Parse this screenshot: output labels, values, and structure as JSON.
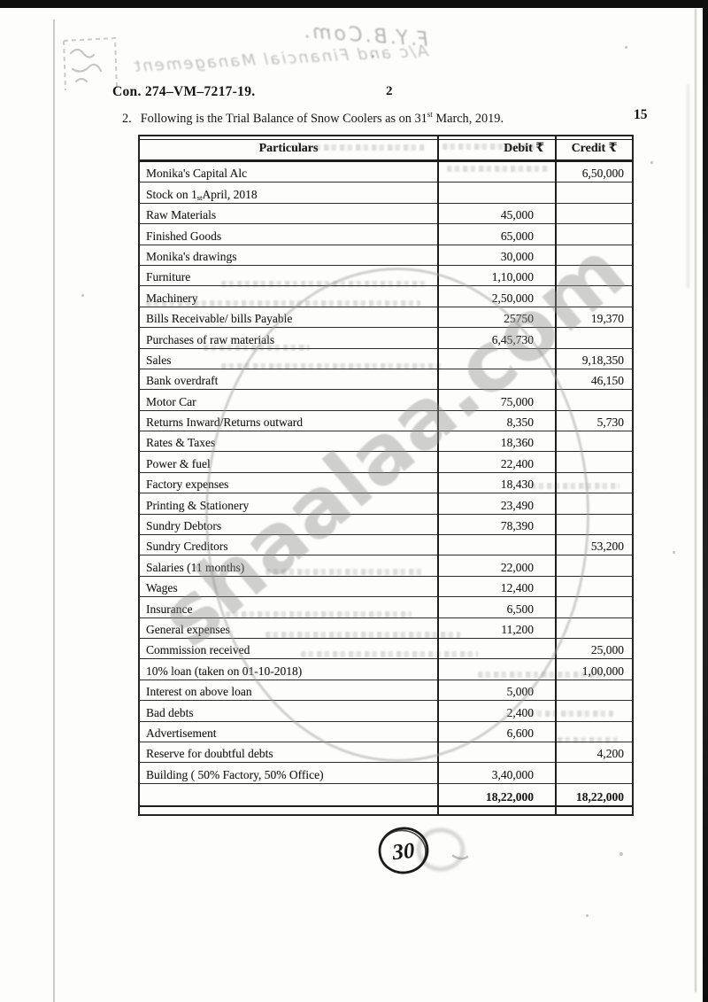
{
  "page": {
    "doc_code": "Con. 274–VM–7217-19.",
    "page_number": "2"
  },
  "question": {
    "number": "2.",
    "text_prefix": "Following is the Trial Balance of Snow Coolers as on 31",
    "ordinal_suffix": "st",
    "text_suffix": " March, 2019.",
    "marks": "15"
  },
  "handwritten": {
    "top_line1": "F.Y.B.Com.",
    "top_line2": "A/c and Financial Management",
    "marks_circle": "30"
  },
  "watermark": {
    "text": "shaalaa.com",
    "color": "#8e8e8e"
  },
  "table": {
    "headers": {
      "particulars": "Particulars",
      "debit": "Debit ₹",
      "credit": "Credit ₹"
    },
    "rows": [
      {
        "label": "Monika's Capital Alc",
        "debit": "",
        "credit": "6,50,000"
      },
      {
        "label": "Stock on 1st April, 2018",
        "debit": "",
        "credit": ""
      },
      {
        "label": "Raw Materials",
        "debit": "45,000",
        "credit": ""
      },
      {
        "label": "Finished Goods",
        "debit": "65,000",
        "credit": ""
      },
      {
        "label": "Monika's drawings",
        "debit": "30,000",
        "credit": ""
      },
      {
        "label": "Furniture",
        "debit": "1,10,000",
        "credit": ""
      },
      {
        "label": "Machinery",
        "debit": "2,50,000",
        "credit": ""
      },
      {
        "label": "Bills Receivable/ bills Payable",
        "debit": "25750",
        "credit": "19,370"
      },
      {
        "label": "Purchases of raw materials",
        "debit": "6,45,730",
        "credit": ""
      },
      {
        "label": "Sales",
        "debit": "",
        "credit": "9,18,350"
      },
      {
        "label": "Bank overdraft",
        "debit": "",
        "credit": "46,150"
      },
      {
        "label": "Motor Car",
        "debit": "75,000",
        "credit": ""
      },
      {
        "label": "Returns Inward/Returns outward",
        "debit": "8,350",
        "credit": "5,730"
      },
      {
        "label": "Rates & Taxes",
        "debit": "18,360",
        "credit": ""
      },
      {
        "label": "Power & fuel",
        "debit": "22,400",
        "credit": ""
      },
      {
        "label": "Factory expenses",
        "debit": "18,430",
        "credit": ""
      },
      {
        "label": "Printing & Stationery",
        "debit": "23,490",
        "credit": ""
      },
      {
        "label": "Sundry Debtors",
        "debit": "78,390",
        "credit": ""
      },
      {
        "label": "Sundry Creditors",
        "debit": "",
        "credit": "53,200"
      },
      {
        "label": "Salaries (11 months)",
        "debit": "22,000",
        "credit": ""
      },
      {
        "label": "Wages",
        "debit": "12,400",
        "credit": ""
      },
      {
        "label": "Insurance",
        "debit": "6,500",
        "credit": ""
      },
      {
        "label": "General expenses",
        "debit": "11,200",
        "credit": ""
      },
      {
        "label": "Commission received",
        "debit": "",
        "credit": "25,000"
      },
      {
        "label": "10% loan (taken on 01-10-2018)",
        "debit": "",
        "credit": "1,00,000"
      },
      {
        "label": "Interest on above loan",
        "debit": "5,000",
        "credit": ""
      },
      {
        "label": "Bad debts",
        "debit": "2,400",
        "credit": ""
      },
      {
        "label": "Advertisement",
        "debit": "6,600",
        "credit": ""
      },
      {
        "label": "Reserve for doubtful debts",
        "debit": "",
        "credit": "4,200"
      },
      {
        "label": "Building ( 50% Factory, 50% Office)",
        "debit": "3,40,000",
        "credit": ""
      }
    ],
    "total": {
      "debit": "18,22,000",
      "credit": "18,22,000"
    }
  }
}
